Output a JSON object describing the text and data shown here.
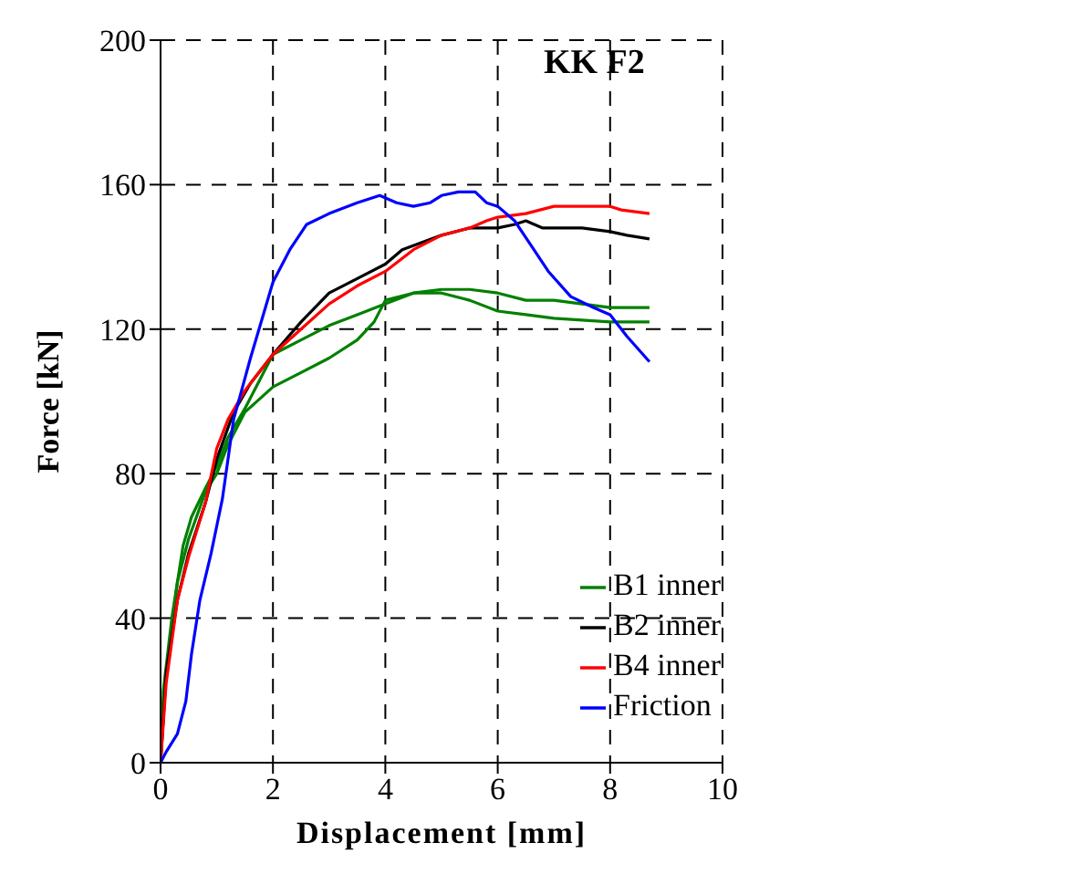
{
  "chart_data": {
    "type": "line",
    "title": "KK F2",
    "xlabel": "Displacement [mm]",
    "ylabel": "Force [kN]",
    "xlim": [
      0,
      10
    ],
    "xticks": [
      0,
      2,
      4,
      6,
      8,
      10
    ],
    "ylim": [
      0,
      200
    ],
    "yticks": [
      0,
      40,
      80,
      120,
      160,
      200
    ],
    "grid": true,
    "legend": "bottom right",
    "marker": "none",
    "line_style": "solid",
    "series": [
      {
        "name": "B1 inner",
        "color": "#008000",
        "x": [
          0,
          0.05,
          0.2,
          0.4,
          0.55,
          0.8,
          1.0,
          1.2,
          1.5,
          2,
          2.5,
          3,
          3.5,
          4,
          4.5,
          5,
          5.5,
          6,
          6.5,
          7,
          7.5,
          8,
          8.7
        ],
        "values": [
          0,
          20,
          40,
          60,
          68,
          76,
          82,
          90,
          98,
          113,
          117,
          121,
          124,
          127,
          130,
          131,
          131,
          130,
          128,
          128,
          127,
          126,
          126
        ]
      },
      {
        "color": "#008000",
        "x": [
          0,
          0.1,
          0.3,
          0.5,
          0.8,
          1.0,
          1.2,
          1.5,
          2,
          2.5,
          3,
          3.5,
          3.8,
          4,
          4.5,
          5,
          5.5,
          6,
          6.5,
          7,
          8,
          8.7
        ],
        "values": [
          0,
          25,
          50,
          62,
          75,
          80,
          88,
          97,
          104,
          108,
          112,
          117,
          122,
          128,
          130,
          130,
          128,
          125,
          124,
          123,
          122,
          122
        ]
      },
      {
        "name": "B2 inner",
        "color": "#000000",
        "x": [
          0,
          0.1,
          0.3,
          0.5,
          0.8,
          1,
          1.3,
          1.6,
          2,
          2.5,
          3,
          3.5,
          4,
          4.3,
          5,
          5.5,
          6,
          6.3,
          6.5,
          6.8,
          7,
          7.5,
          8,
          8.3,
          8.7
        ],
        "values": [
          0,
          25,
          45,
          58,
          72,
          84,
          97,
          105,
          113,
          122,
          130,
          134,
          138,
          142,
          146,
          148,
          148,
          149,
          150,
          148,
          148,
          148,
          147,
          146,
          145
        ]
      },
      {
        "name": "B4 inner",
        "color": "#ff0000",
        "x": [
          0,
          0.1,
          0.3,
          0.5,
          0.8,
          1,
          1.2,
          1.5,
          2,
          2.5,
          3,
          3.5,
          4,
          4.5,
          5,
          5.5,
          5.8,
          6,
          6.5,
          7,
          8,
          8.2,
          8.7
        ],
        "values": [
          0,
          22,
          45,
          57,
          72,
          87,
          95,
          103,
          113,
          120,
          127,
          132,
          136,
          142,
          146,
          148,
          150,
          151,
          152,
          154,
          154,
          153,
          152
        ]
      },
      {
        "name": "Friction",
        "color": "#0000ff",
        "x": [
          0,
          0.1,
          0.3,
          0.45,
          0.55,
          0.7,
          0.9,
          1.1,
          1.3,
          1.6,
          2,
          2.3,
          2.6,
          3,
          3.5,
          3.9,
          4.2,
          4.5,
          4.8,
          5,
          5.3,
          5.6,
          5.8,
          6,
          6.3,
          6.6,
          6.9,
          7.3,
          7.7,
          8,
          8.3,
          8.7
        ],
        "values": [
          0,
          3,
          8,
          17,
          30,
          45,
          58,
          73,
          95,
          112,
          133,
          142,
          149,
          152,
          155,
          157,
          155,
          154,
          155,
          157,
          158,
          158,
          155,
          154,
          150,
          143,
          136,
          129,
          126,
          124,
          118,
          111
        ]
      }
    ]
  }
}
